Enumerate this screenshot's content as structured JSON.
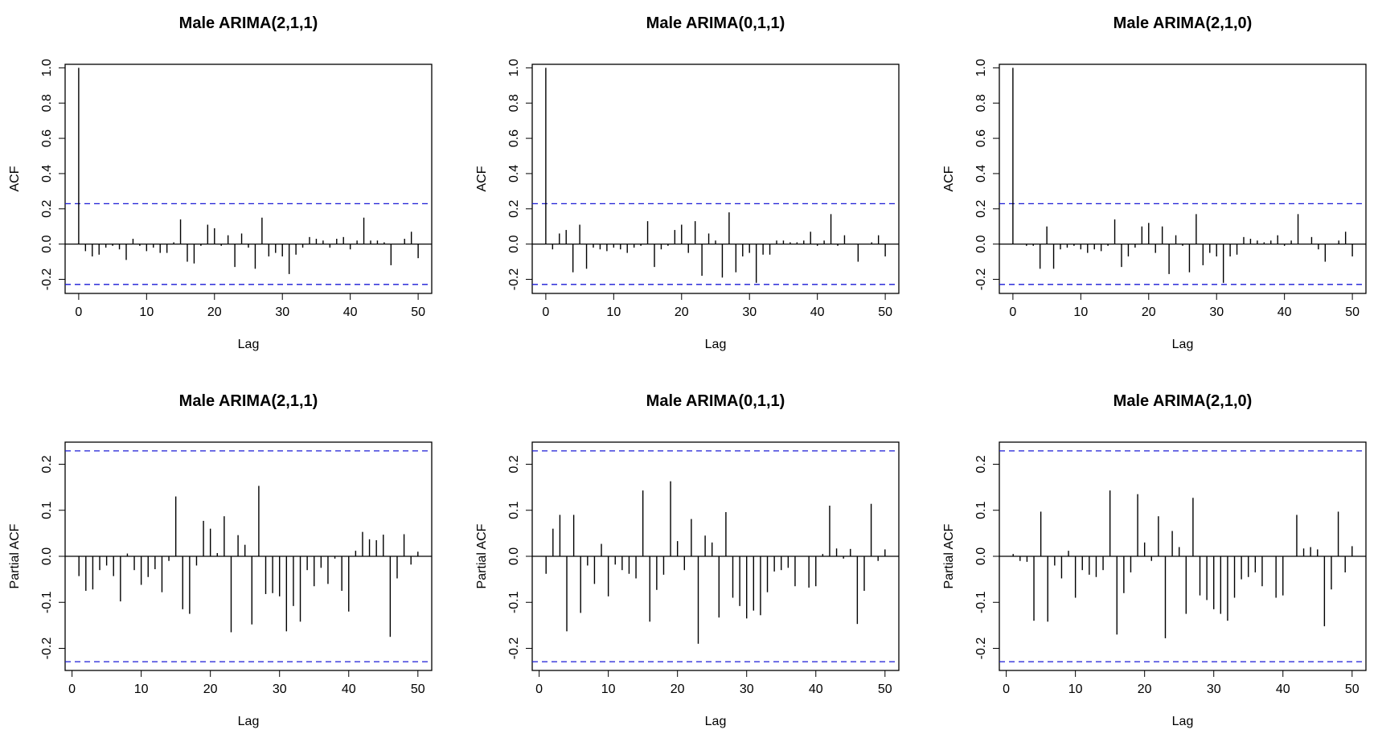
{
  "chart_data": [
    {
      "type": "bar",
      "title": "Male ARIMA(2,1,1)",
      "xlabel": "Lag",
      "ylabel": "ACF",
      "xlim": [
        -2,
        52
      ],
      "ylim": [
        -0.28,
        1.02
      ],
      "xticks": [
        0,
        10,
        20,
        30,
        40,
        50
      ],
      "yticks": [
        -0.2,
        0.0,
        0.2,
        0.4,
        0.6,
        0.8,
        1.0
      ],
      "ytick_labels": [
        "-0.2",
        "0.0",
        "0.2",
        "0.4",
        "0.6",
        "0.8",
        "1.0"
      ],
      "conf_limit": 0.229,
      "grid": false,
      "x_start": 0,
      "values": [
        1.0,
        -0.04,
        -0.07,
        -0.06,
        -0.02,
        -0.01,
        -0.03,
        -0.09,
        0.03,
        -0.01,
        -0.04,
        -0.02,
        -0.05,
        -0.05,
        0.01,
        0.14,
        -0.1,
        -0.11,
        -0.01,
        0.11,
        0.09,
        -0.01,
        0.05,
        -0.13,
        0.06,
        -0.02,
        -0.14,
        0.15,
        -0.07,
        -0.05,
        -0.07,
        -0.17,
        -0.06,
        -0.02,
        0.04,
        0.03,
        0.02,
        -0.02,
        0.03,
        0.04,
        -0.03,
        0.02,
        0.15,
        0.02,
        0.02,
        0.01,
        -0.12,
        0.0,
        0.03,
        0.07,
        -0.08
      ]
    },
    {
      "type": "bar",
      "title": "Male ARIMA(0,1,1)",
      "xlabel": "Lag",
      "ylabel": "ACF",
      "xlim": [
        -2,
        52
      ],
      "ylim": [
        -0.28,
        1.02
      ],
      "xticks": [
        0,
        10,
        20,
        30,
        40,
        50
      ],
      "yticks": [
        -0.2,
        0.0,
        0.2,
        0.4,
        0.6,
        0.8,
        1.0
      ],
      "ytick_labels": [
        "-0.2",
        "0.0",
        "0.2",
        "0.4",
        "0.6",
        "0.8",
        "1.0"
      ],
      "conf_limit": 0.229,
      "grid": false,
      "x_start": 0,
      "values": [
        1.0,
        -0.03,
        0.06,
        0.08,
        -0.16,
        0.11,
        -0.14,
        -0.02,
        -0.03,
        -0.04,
        -0.02,
        -0.03,
        -0.05,
        -0.02,
        -0.01,
        0.13,
        -0.13,
        -0.03,
        -0.01,
        0.08,
        0.11,
        -0.05,
        0.13,
        -0.18,
        0.06,
        0.02,
        -0.19,
        0.18,
        -0.16,
        -0.07,
        -0.05,
        -0.22,
        -0.06,
        -0.06,
        0.02,
        0.02,
        0.01,
        0.01,
        0.02,
        0.07,
        -0.01,
        0.02,
        0.17,
        -0.01,
        0.05,
        0.0,
        -0.1,
        0.0,
        0.01,
        0.05,
        -0.07
      ]
    },
    {
      "type": "bar",
      "title": "Male ARIMA(2,1,0)",
      "xlabel": "Lag",
      "ylabel": "ACF",
      "xlim": [
        -2,
        52
      ],
      "ylim": [
        -0.28,
        1.02
      ],
      "xticks": [
        0,
        10,
        20,
        30,
        40,
        50
      ],
      "yticks": [
        -0.2,
        0.0,
        0.2,
        0.4,
        0.6,
        0.8,
        1.0
      ],
      "ytick_labels": [
        "-0.2",
        "0.0",
        "0.2",
        "0.4",
        "0.6",
        "0.8",
        "1.0"
      ],
      "conf_limit": 0.229,
      "grid": false,
      "x_start": 0,
      "values": [
        1.0,
        0.0,
        -0.01,
        -0.01,
        -0.14,
        0.1,
        -0.14,
        -0.03,
        -0.02,
        -0.01,
        -0.03,
        -0.05,
        -0.03,
        -0.04,
        -0.01,
        0.14,
        -0.13,
        -0.07,
        -0.02,
        0.1,
        0.12,
        -0.05,
        0.1,
        -0.17,
        0.05,
        -0.01,
        -0.16,
        0.17,
        -0.12,
        -0.05,
        -0.07,
        -0.22,
        -0.07,
        -0.06,
        0.04,
        0.03,
        0.02,
        0.01,
        0.02,
        0.05,
        -0.01,
        0.02,
        0.17,
        0.0,
        0.04,
        -0.03,
        -0.1,
        0.0,
        0.02,
        0.07,
        -0.07
      ]
    },
    {
      "type": "bar",
      "title": "Male ARIMA(2,1,1)",
      "xlabel": "Lag",
      "ylabel": "Partial ACF",
      "xlim": [
        -1,
        52
      ],
      "ylim": [
        -0.248,
        0.248
      ],
      "xticks": [
        0,
        10,
        20,
        30,
        40,
        50
      ],
      "yticks": [
        -0.2,
        -0.1,
        0.0,
        0.1,
        0.2
      ],
      "ytick_labels": [
        "-0.2",
        "-0.1",
        "0.0",
        "0.1",
        "0.2"
      ],
      "conf_limit": 0.229,
      "grid": false,
      "x_start": 1,
      "values": [
        -0.043,
        -0.075,
        -0.072,
        -0.03,
        -0.02,
        -0.043,
        -0.098,
        0.006,
        -0.03,
        -0.062,
        -0.045,
        -0.028,
        -0.078,
        -0.01,
        0.13,
        -0.115,
        -0.125,
        -0.02,
        0.077,
        0.06,
        0.007,
        0.087,
        -0.165,
        0.046,
        0.025,
        -0.148,
        0.153,
        -0.082,
        -0.08,
        -0.087,
        -0.163,
        -0.108,
        -0.142,
        -0.03,
        -0.065,
        -0.025,
        -0.06,
        -0.005,
        -0.075,
        -0.12,
        0.012,
        0.053,
        0.037,
        0.035,
        0.047,
        -0.175,
        -0.048,
        0.048,
        -0.018,
        0.01
      ]
    },
    {
      "type": "bar",
      "title": "Male ARIMA(0,1,1)",
      "xlabel": "Lag",
      "ylabel": "Partial ACF",
      "xlim": [
        -1,
        52
      ],
      "ylim": [
        -0.248,
        0.248
      ],
      "xticks": [
        0,
        10,
        20,
        30,
        40,
        50
      ],
      "yticks": [
        -0.2,
        -0.1,
        0.0,
        0.1,
        0.2
      ],
      "ytick_labels": [
        "-0.2",
        "-0.1",
        "0.0",
        "0.1",
        "0.2"
      ],
      "conf_limit": 0.229,
      "grid": false,
      "x_start": 1,
      "values": [
        -0.038,
        0.06,
        0.09,
        -0.163,
        0.09,
        -0.123,
        -0.02,
        -0.06,
        0.027,
        -0.087,
        -0.018,
        -0.03,
        -0.038,
        -0.048,
        0.143,
        -0.142,
        -0.073,
        -0.04,
        0.163,
        0.033,
        -0.03,
        0.081,
        -0.19,
        0.045,
        0.03,
        -0.133,
        0.096,
        -0.09,
        -0.108,
        -0.135,
        -0.118,
        -0.128,
        -0.078,
        -0.033,
        -0.03,
        -0.025,
        -0.065,
        0.0,
        -0.068,
        -0.065,
        0.005,
        0.11,
        0.017,
        -0.005,
        0.016,
        -0.147,
        -0.075,
        0.114,
        -0.01,
        0.015
      ]
    },
    {
      "type": "bar",
      "title": "Male ARIMA(2,1,0)",
      "xlabel": "Lag",
      "ylabel": "Partial ACF",
      "xlim": [
        -1,
        52
      ],
      "ylim": [
        -0.248,
        0.248
      ],
      "xticks": [
        0,
        10,
        20,
        30,
        40,
        50
      ],
      "yticks": [
        -0.2,
        -0.1,
        0.0,
        0.1,
        0.2
      ],
      "ytick_labels": [
        "-0.2",
        "-0.1",
        "0.0",
        "0.1",
        "0.2"
      ],
      "conf_limit": 0.229,
      "grid": false,
      "x_start": 1,
      "values": [
        0.005,
        -0.01,
        -0.012,
        -0.14,
        0.097,
        -0.142,
        -0.02,
        -0.048,
        0.012,
        -0.09,
        -0.03,
        -0.04,
        -0.045,
        -0.03,
        0.143,
        -0.17,
        -0.08,
        -0.035,
        0.135,
        0.03,
        -0.01,
        0.087,
        -0.178,
        0.055,
        0.02,
        -0.125,
        0.127,
        -0.085,
        -0.095,
        -0.115,
        -0.125,
        -0.14,
        -0.09,
        -0.05,
        -0.045,
        -0.035,
        -0.065,
        0.0,
        -0.09,
        -0.085,
        0.0,
        0.09,
        0.017,
        0.02,
        0.015,
        -0.152,
        -0.072,
        0.097,
        -0.035,
        0.022
      ]
    }
  ],
  "colors": {
    "bars": "#000000",
    "frame": "#000000",
    "conf_line": "#1a1ad6",
    "background": "#ffffff"
  }
}
